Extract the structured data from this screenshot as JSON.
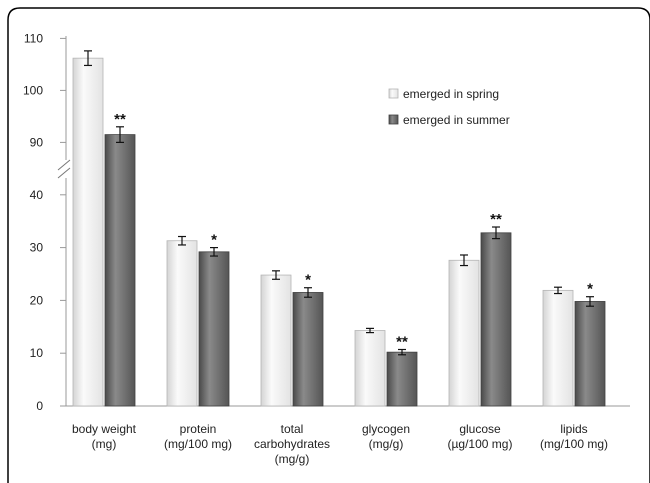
{
  "chart_data": {
    "type": "bar",
    "categories": [
      [
        "body weight",
        "(mg)"
      ],
      [
        "protein",
        "(mg/100 mg)"
      ],
      [
        "total",
        "carbohydrates",
        "(mg/g)"
      ],
      [
        "glycogen",
        "(mg/g)"
      ],
      [
        "glucose",
        "(µg/100 mg)"
      ],
      [
        "lipids",
        "(mg/100 mg)"
      ]
    ],
    "series": [
      {
        "name": "emerged in spring",
        "color": "#e9e9e9",
        "values": [
          106.2,
          31.3,
          24.8,
          14.3,
          27.6,
          21.9
        ],
        "errors": [
          1.4,
          0.8,
          0.8,
          0.4,
          1.0,
          0.6
        ],
        "annotations": [
          "",
          "",
          "",
          "",
          "",
          ""
        ]
      },
      {
        "name": "emerged in summer",
        "color": "#6b6b6b",
        "values": [
          91.5,
          29.2,
          21.5,
          10.2,
          32.8,
          19.8
        ],
        "errors": [
          1.5,
          0.8,
          0.9,
          0.5,
          1.1,
          0.9
        ],
        "annotations": [
          "**",
          "*",
          "*",
          "**",
          "**",
          "*"
        ]
      }
    ],
    "y_axis": {
      "broken": true,
      "lower_range": [
        0,
        40
      ],
      "upper_range": [
        90,
        110
      ],
      "ticks": [
        0,
        10,
        20,
        30,
        40,
        90,
        100,
        110
      ]
    },
    "legend_position": "top-right",
    "grid": false
  },
  "tick_labels": [
    "0",
    "10",
    "20",
    "30",
    "40",
    "90",
    "100",
    "110"
  ]
}
